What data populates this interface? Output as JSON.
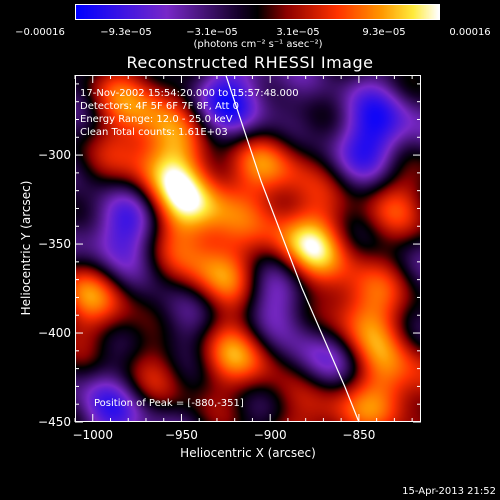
{
  "chart_data": {
    "type": "heatmap",
    "title": "Reconstructed RHESSI Image",
    "xlabel": "Heliocentric X (arcsec)",
    "ylabel": "Heliocentric Y (arcsec)",
    "xlim": [
      -1010,
      -815
    ],
    "ylim": [
      -450,
      -255
    ],
    "x_ticks": [
      -1000,
      -950,
      -900,
      -850
    ],
    "x_tick_labels": [
      "−1000",
      "−950",
      "−900",
      "−850"
    ],
    "y_ticks": [
      -300,
      -350,
      -400,
      -450
    ],
    "y_tick_labels": [
      "−300",
      "−350",
      "−400",
      "−450"
    ],
    "colorbar": {
      "ticks": [
        "−0.00016",
        "−9.3e−05",
        "−3.1e−05",
        "3.1e−05",
        "9.3e−05",
        "0.00016"
      ],
      "range": [
        -0.00016,
        0.00016
      ],
      "units": "(photons cm⁻² s⁻¹ asec⁻²)"
    },
    "info_lines": [
      "17-Nov-2002 15:54:20.000 to 15:57:48.000",
      "Detectors: 4F 5F 6F 7F 8F, Att 0",
      "Energy Range: 12.0 - 25.0 keV",
      "Clean    Total counts: 1.61E+03"
    ],
    "peak_label": "Position of Peak = [-880,-351]",
    "peak": [
      -880,
      -351
    ],
    "sources": [
      {
        "x": -945,
        "y": -330,
        "value": 0.00015
      },
      {
        "x": -960,
        "y": -300,
        "value": 0.00012
      },
      {
        "x": -930,
        "y": -370,
        "value": 0.00014
      },
      {
        "x": -975,
        "y": -270,
        "value": 0.0001
      },
      {
        "x": -880,
        "y": -351,
        "value": 0.00016
      },
      {
        "x": -900,
        "y": -305,
        "value": 0.00011
      },
      {
        "x": -850,
        "y": -390,
        "value": 0.00014
      },
      {
        "x": -830,
        "y": -430,
        "value": 0.00012
      },
      {
        "x": -915,
        "y": -410,
        "value": 0.00013
      },
      {
        "x": -965,
        "y": -420,
        "value": 0.0001
      },
      {
        "x": -1000,
        "y": -380,
        "value": 0.00011
      },
      {
        "x": -1005,
        "y": -330,
        "value": 8e-05
      },
      {
        "x": -825,
        "y": -320,
        "value": 9e-05
      },
      {
        "x": -870,
        "y": -445,
        "value": 0.0001
      },
      {
        "x": -990,
        "y": -340,
        "value": -0.00016
      },
      {
        "x": -900,
        "y": -380,
        "value": -0.00012
      },
      {
        "x": -840,
        "y": -290,
        "value": -0.00013
      },
      {
        "x": -920,
        "y": -270,
        "value": -0.00011
      },
      {
        "x": -950,
        "y": -395,
        "value": -9e-05
      },
      {
        "x": -870,
        "y": -415,
        "value": -0.0001
      },
      {
        "x": -985,
        "y": -440,
        "value": -9e-05
      }
    ],
    "limb_curve": [
      [
        -925,
        -255
      ],
      [
        -905,
        -315
      ],
      [
        -882,
        -375
      ],
      [
        -858,
        -430
      ],
      [
        -850,
        -450
      ]
    ]
  },
  "timestamp": "15-Apr-2013 21:52"
}
